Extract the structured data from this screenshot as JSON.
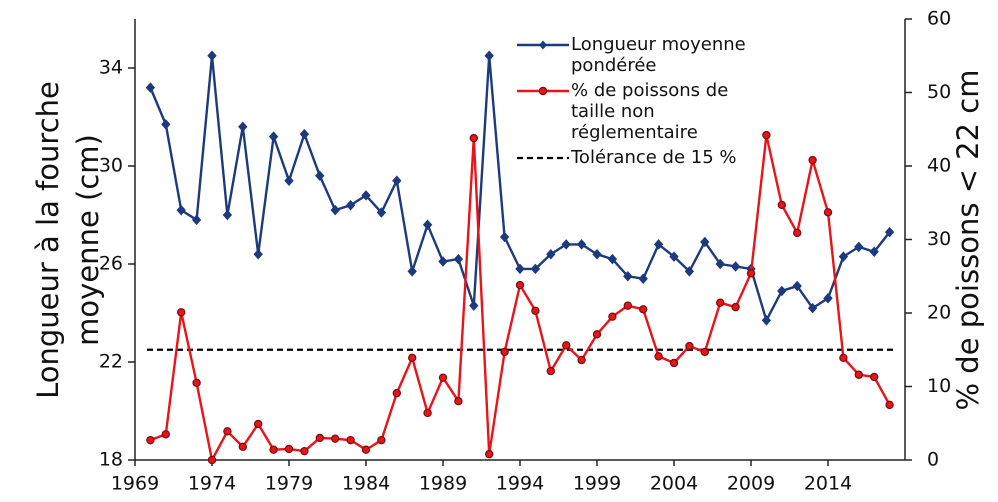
{
  "chart_data": {
    "type": "line",
    "ylabel": [
      "Longueur à la fourche",
      "moyenne (cm)"
    ],
    "y2label": "% de poissons < 22 cm",
    "x": [
      1970,
      1971,
      1972,
      1973,
      1974,
      1975,
      1976,
      1977,
      1978,
      1979,
      1980,
      1981,
      1982,
      1983,
      1984,
      1985,
      1986,
      1987,
      1988,
      1989,
      1990,
      1991,
      1992,
      1993,
      1994,
      1995,
      1996,
      1997,
      1998,
      1999,
      2000,
      2001,
      2002,
      2003,
      2004,
      2005,
      2006,
      2007,
      2008,
      2009,
      2010,
      2011,
      2012,
      2013,
      2014,
      2015,
      2016,
      2017,
      2018
    ],
    "xlim": [
      1969,
      2019
    ],
    "xticks": [
      1969,
      1974,
      1979,
      1984,
      1989,
      1994,
      1999,
      2004,
      2009,
      2014
    ],
    "ylim": [
      18,
      36
    ],
    "yticks": [
      18,
      22,
      26,
      30,
      34
    ],
    "y2lim": [
      0,
      60
    ],
    "y2ticks": [
      0,
      10,
      20,
      30,
      40,
      50,
      60
    ],
    "series": [
      {
        "name": "Longueur moyenne pondérée",
        "color": "#1c3a7c",
        "marker": "diamond",
        "values": [
          33.2,
          31.7,
          28.2,
          27.8,
          34.5,
          28.0,
          31.6,
          26.4,
          31.2,
          29.4,
          31.3,
          29.6,
          28.2,
          28.4,
          28.8,
          28.1,
          29.4,
          25.7,
          27.6,
          26.1,
          26.2,
          24.3,
          34.5,
          27.1,
          25.8,
          25.8,
          26.4,
          26.8,
          26.8,
          26.4,
          26.2,
          25.5,
          25.4,
          26.8,
          26.3,
          25.7,
          26.9,
          26.0,
          25.9,
          25.8,
          23.7,
          24.9,
          25.1,
          24.2,
          24.6,
          26.3,
          26.7,
          26.5,
          27.3
        ]
      },
      {
        "name": "% de poissons de taille non réglementaire",
        "color": "#e8141b",
        "marker": "circle",
        "axis": "y2",
        "values": [
          2.7,
          3.5,
          20.1,
          10.5,
          0,
          3.9,
          1.8,
          4.9,
          1.4,
          1.5,
          1.2,
          3.0,
          2.9,
          2.7,
          1.4,
          2.7,
          9.1,
          13.9,
          6.4,
          11.2,
          8.0,
          43.8,
          0.8,
          14.7,
          23.8,
          20.3,
          12.1,
          15.6,
          13.6,
          17.1,
          19.5,
          21.0,
          20.5,
          14.1,
          13.2,
          15.5,
          14.7,
          21.4,
          20.8,
          25.4,
          44.2,
          34.7,
          30.9,
          40.8,
          33.7,
          13.9,
          11.6,
          11.3,
          7.5
        ]
      }
    ],
    "reference_line": {
      "name": "Tolérance de 15 %",
      "value": 15,
      "axis": "y2",
      "color": "#000000"
    }
  }
}
